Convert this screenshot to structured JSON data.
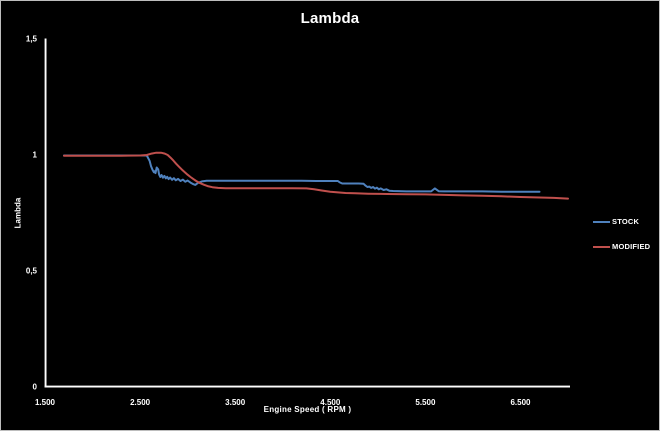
{
  "chart": {
    "title": "Lambda",
    "x_axis_title": "Engine Speed ( RPM )",
    "y_axis_title": "Lambda",
    "background_color": "#000000",
    "text_color": "#ffffff",
    "axis_color": "#ffffff"
  },
  "chart_data": {
    "type": "line",
    "title": "Lambda",
    "xlabel": "Engine Speed ( RPM )",
    "ylabel": "Lambda",
    "xlim": [
      1500,
      7030
    ],
    "ylim": [
      0,
      1.5
    ],
    "grid": false,
    "legend_position": "right",
    "background": "black",
    "x_ticks": [
      {
        "value": 1500,
        "label": "1.500"
      },
      {
        "value": 2500,
        "label": "2.500"
      },
      {
        "value": 3500,
        "label": "3.500"
      },
      {
        "value": 4500,
        "label": "4.500"
      },
      {
        "value": 5500,
        "label": "5.500"
      },
      {
        "value": 6500,
        "label": "6.500"
      }
    ],
    "y_ticks": [
      {
        "value": 0,
        "label": "0"
      },
      {
        "value": 0.5,
        "label": "0,5"
      },
      {
        "value": 1,
        "label": "1"
      },
      {
        "value": 1.5,
        "label": "1,5"
      }
    ],
    "series": [
      {
        "name": "STOCK",
        "color": "#4F81BD",
        "points": [
          [
            1700,
            0.998
          ],
          [
            2000,
            0.998
          ],
          [
            2300,
            0.998
          ],
          [
            2500,
            0.998
          ],
          [
            2570,
            0.998
          ],
          [
            2600,
            0.975
          ],
          [
            2615,
            0.952
          ],
          [
            2630,
            0.936
          ],
          [
            2645,
            0.926
          ],
          [
            2655,
            0.93
          ],
          [
            2662,
            0.922
          ],
          [
            2675,
            0.946
          ],
          [
            2690,
            0.938
          ],
          [
            2700,
            0.916
          ],
          [
            2712,
            0.905
          ],
          [
            2725,
            0.914
          ],
          [
            2740,
            0.902
          ],
          [
            2755,
            0.91
          ],
          [
            2770,
            0.899
          ],
          [
            2785,
            0.906
          ],
          [
            2800,
            0.896
          ],
          [
            2815,
            0.903
          ],
          [
            2835,
            0.893
          ],
          [
            2855,
            0.9
          ],
          [
            2875,
            0.891
          ],
          [
            2900,
            0.897
          ],
          [
            2925,
            0.888
          ],
          [
            2950,
            0.894
          ],
          [
            2975,
            0.885
          ],
          [
            3000,
            0.89
          ],
          [
            3030,
            0.881
          ],
          [
            3060,
            0.874
          ],
          [
            3080,
            0.871
          ],
          [
            3110,
            0.88
          ],
          [
            3150,
            0.886
          ],
          [
            3200,
            0.889
          ],
          [
            3300,
            0.889
          ],
          [
            3450,
            0.889
          ],
          [
            3600,
            0.889
          ],
          [
            3750,
            0.889
          ],
          [
            3900,
            0.889
          ],
          [
            4050,
            0.889
          ],
          [
            4200,
            0.889
          ],
          [
            4350,
            0.888
          ],
          [
            4500,
            0.888
          ],
          [
            4580,
            0.888
          ],
          [
            4600,
            0.882
          ],
          [
            4625,
            0.877
          ],
          [
            4700,
            0.877
          ],
          [
            4800,
            0.877
          ],
          [
            4850,
            0.876
          ],
          [
            4870,
            0.868
          ],
          [
            4890,
            0.862
          ],
          [
            4910,
            0.864
          ],
          [
            4930,
            0.858
          ],
          [
            4950,
            0.862
          ],
          [
            4970,
            0.855
          ],
          [
            4990,
            0.859
          ],
          [
            5010,
            0.852
          ],
          [
            5030,
            0.856
          ],
          [
            5060,
            0.849
          ],
          [
            5090,
            0.852
          ],
          [
            5120,
            0.846
          ],
          [
            5160,
            0.845
          ],
          [
            5300,
            0.843
          ],
          [
            5400,
            0.843
          ],
          [
            5500,
            0.843
          ],
          [
            5560,
            0.843
          ],
          [
            5600,
            0.856
          ],
          [
            5640,
            0.844
          ],
          [
            5700,
            0.843
          ],
          [
            5900,
            0.843
          ],
          [
            6100,
            0.843
          ],
          [
            6300,
            0.842
          ],
          [
            6500,
            0.842
          ],
          [
            6700,
            0.842
          ]
        ]
      },
      {
        "name": "MODIFIED",
        "color": "#C0504D",
        "points": [
          [
            1700,
            0.997
          ],
          [
            2000,
            0.997
          ],
          [
            2300,
            0.997
          ],
          [
            2500,
            0.998
          ],
          [
            2570,
            1.0
          ],
          [
            2620,
            1.006
          ],
          [
            2670,
            1.01
          ],
          [
            2720,
            1.01
          ],
          [
            2760,
            1.006
          ],
          [
            2790,
            1.0
          ],
          [
            2820,
            0.989
          ],
          [
            2850,
            0.976
          ],
          [
            2880,
            0.962
          ],
          [
            2910,
            0.949
          ],
          [
            2940,
            0.937
          ],
          [
            2970,
            0.926
          ],
          [
            3000,
            0.915
          ],
          [
            3030,
            0.905
          ],
          [
            3060,
            0.896
          ],
          [
            3090,
            0.888
          ],
          [
            3130,
            0.879
          ],
          [
            3170,
            0.872
          ],
          [
            3210,
            0.866
          ],
          [
            3260,
            0.861
          ],
          [
            3320,
            0.858
          ],
          [
            3400,
            0.857
          ],
          [
            3500,
            0.857
          ],
          [
            3650,
            0.857
          ],
          [
            3800,
            0.857
          ],
          [
            3950,
            0.857
          ],
          [
            4100,
            0.857
          ],
          [
            4250,
            0.856
          ],
          [
            4330,
            0.852
          ],
          [
            4410,
            0.847
          ],
          [
            4500,
            0.842
          ],
          [
            4580,
            0.839
          ],
          [
            4660,
            0.836
          ],
          [
            4760,
            0.835
          ],
          [
            4900,
            0.833
          ],
          [
            5100,
            0.832
          ],
          [
            5300,
            0.831
          ],
          [
            5500,
            0.83
          ],
          [
            5700,
            0.828
          ],
          [
            5900,
            0.826
          ],
          [
            6100,
            0.824
          ],
          [
            6300,
            0.822
          ],
          [
            6500,
            0.819
          ],
          [
            6700,
            0.817
          ],
          [
            6850,
            0.815
          ],
          [
            7000,
            0.812
          ]
        ]
      }
    ]
  },
  "legend": {
    "items": [
      {
        "label": "STOCK"
      },
      {
        "label": "MODIFIED"
      }
    ]
  }
}
